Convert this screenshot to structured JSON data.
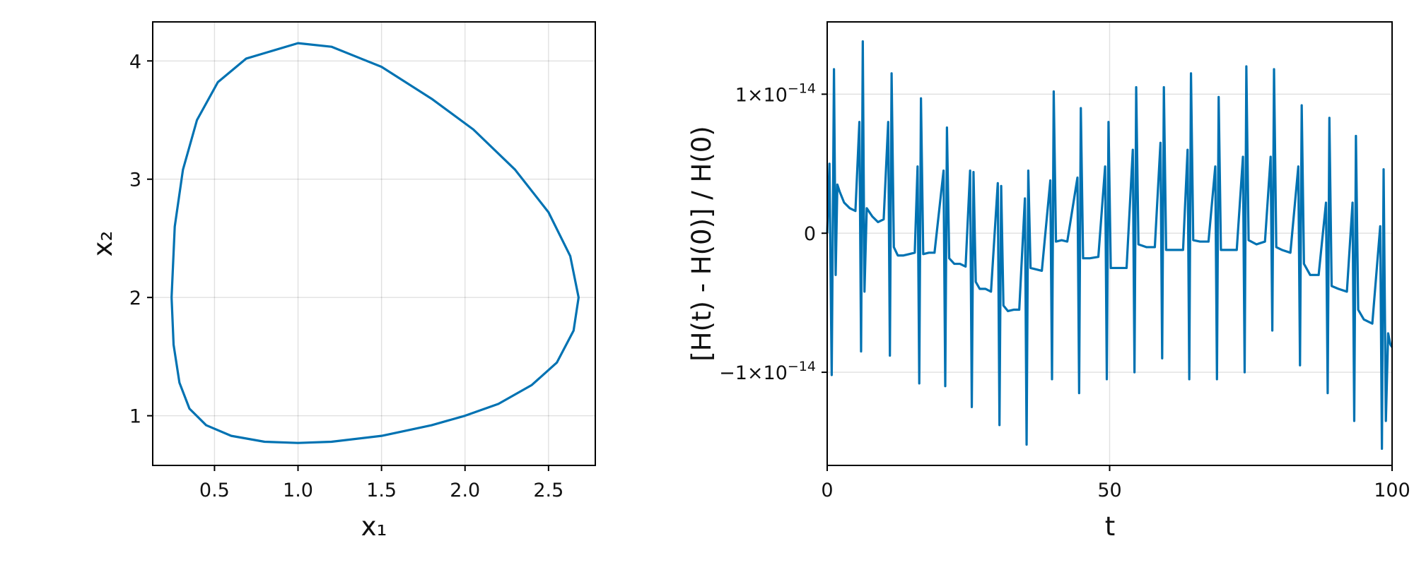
{
  "chart_data": [
    {
      "type": "line",
      "xlabel": "x₁",
      "ylabel": "x₂",
      "xlim": [
        0.13,
        2.78
      ],
      "ylim": [
        0.58,
        4.33
      ],
      "xticks": [
        {
          "value": 0.5,
          "label": "0.5"
        },
        {
          "value": 1.0,
          "label": "1.0"
        },
        {
          "value": 1.5,
          "label": "1.5"
        },
        {
          "value": 2.0,
          "label": "2.0"
        },
        {
          "value": 2.5,
          "label": "2.5"
        }
      ],
      "yticks": [
        {
          "value": 1,
          "label": "1"
        },
        {
          "value": 2,
          "label": "2"
        },
        {
          "value": 3,
          "label": "3"
        },
        {
          "value": 4,
          "label": "4"
        }
      ],
      "grid": true,
      "color": "#0072b2",
      "series": [
        {
          "x": [
            0.243,
            0.262,
            0.311,
            0.395,
            0.52,
            0.69,
            1.0,
            1.2,
            1.5,
            1.8,
            2.05,
            2.3,
            2.5,
            2.63,
            2.68,
            2.65,
            2.55,
            2.4,
            2.2,
            2.0,
            1.8,
            1.5,
            1.2,
            1.0,
            0.8,
            0.6,
            0.45,
            0.35,
            0.29,
            0.255,
            0.243
          ],
          "y": [
            2.0,
            2.6,
            3.08,
            3.5,
            3.82,
            4.02,
            4.15,
            4.12,
            3.95,
            3.68,
            3.42,
            3.08,
            2.72,
            2.35,
            2.0,
            1.72,
            1.45,
            1.26,
            1.1,
            1.0,
            0.92,
            0.83,
            0.78,
            0.77,
            0.78,
            0.83,
            0.92,
            1.06,
            1.28,
            1.6,
            2.0
          ]
        }
      ]
    },
    {
      "type": "line",
      "xlabel": "t",
      "ylabel": "[H(t) - H(0)] / H(0)",
      "xlim": [
        0,
        100
      ],
      "ylim": [
        -1.67e-14,
        1.52e-14
      ],
      "xticks": [
        {
          "value": 0,
          "label": "0"
        },
        {
          "value": 50,
          "label": "50"
        },
        {
          "value": 100,
          "label": "100"
        }
      ],
      "yticks": [
        {
          "value": 1e-14,
          "mantissa": "1×10",
          "exp": "−14"
        },
        {
          "value": 0,
          "mantissa": "0",
          "exp": ""
        },
        {
          "value": -1e-14,
          "mantissa": "−1×10",
          "exp": "−14"
        }
      ],
      "grid": true,
      "color": "#0072b2",
      "series": [
        {
          "x": [
            0,
            0.4,
            0.8,
            1.2,
            1.5,
            1.8,
            2.2,
            3,
            4,
            5,
            5.7,
            6.0,
            6.3,
            6.6,
            7,
            8,
            9,
            10,
            10.8,
            11.1,
            11.4,
            11.8,
            12.5,
            13.5,
            14.5,
            15.5,
            16.0,
            16.3,
            16.6,
            17,
            18,
            19,
            20.6,
            20.9,
            21.2,
            21.6,
            22.5,
            23.5,
            24.5,
            25.3,
            25.6,
            25.9,
            26.3,
            27,
            28,
            29,
            30.2,
            30.5,
            30.8,
            31.2,
            32,
            33,
            34,
            35.0,
            35.3,
            35.6,
            36.0,
            37,
            38,
            39.5,
            39.8,
            40.1,
            40.5,
            41.5,
            42.5,
            44.3,
            44.6,
            44.9,
            45.3,
            46.5,
            48,
            49.2,
            49.5,
            49.8,
            50.2,
            51.5,
            53,
            54.1,
            54.4,
            54.7,
            55.1,
            56.5,
            58,
            59.0,
            59.3,
            59.6,
            60.0,
            61.5,
            63,
            63.8,
            64.1,
            64.4,
            64.8,
            66,
            67.5,
            68.7,
            69.0,
            69.3,
            69.7,
            71,
            72.5,
            73.6,
            73.9,
            74.2,
            74.6,
            76,
            77.5,
            78.5,
            78.8,
            79.1,
            79.5,
            80.5,
            82,
            83.4,
            83.7,
            84.0,
            84.4,
            85.5,
            87,
            88.3,
            88.6,
            88.9,
            89.3,
            90.5,
            92,
            93.0,
            93.3,
            93.6,
            94.0,
            95,
            96.5,
            97.9,
            98.2,
            98.5,
            98.9,
            99.3,
            99.7,
            100
          ],
          "y": [
            0.0,
            5e-15,
            -1.02e-14,
            1.18e-14,
            -3e-15,
            3.5e-15,
            3e-15,
            2.2e-15,
            1.8e-15,
            1.6e-15,
            8e-15,
            -8.5e-15,
            1.38e-14,
            -4.2e-15,
            1.8e-15,
            1.2e-15,
            8e-16,
            1e-15,
            8e-15,
            -8.8e-15,
            1.15e-14,
            -1e-15,
            -1.6e-15,
            -1.6e-15,
            -1.5e-15,
            -1.4e-15,
            4.8e-15,
            -1.08e-14,
            9.7e-15,
            -1.5e-15,
            -1.4e-15,
            -1.4e-15,
            4.5e-15,
            -1.1e-14,
            7.6e-15,
            -1.8e-15,
            -2.2e-15,
            -2.2e-15,
            -2.4e-15,
            4.5e-15,
            -1.25e-14,
            4.4e-15,
            -3.5e-15,
            -4e-15,
            -4e-15,
            -4.2e-15,
            3.6e-15,
            -1.38e-14,
            3.4e-15,
            -5.2e-15,
            -5.6e-15,
            -5.5e-15,
            -5.5e-15,
            2.5e-15,
            -1.52e-14,
            4.5e-15,
            -2.5e-15,
            -2.6e-15,
            -2.7e-15,
            3.8e-15,
            -1.05e-14,
            1.02e-14,
            -6e-16,
            -5e-16,
            -6e-16,
            4e-15,
            -1.15e-14,
            9e-15,
            -1.8e-15,
            -1.8e-15,
            -1.7e-15,
            4.8e-15,
            -1.05e-14,
            8e-15,
            -2.5e-15,
            -2.5e-15,
            -2.5e-15,
            6e-15,
            -1e-14,
            1.05e-14,
            -8e-16,
            -1e-15,
            -1e-15,
            6.5e-15,
            -9e-15,
            1.05e-14,
            -1.2e-15,
            -1.2e-15,
            -1.2e-15,
            6e-15,
            -1.05e-14,
            1.15e-14,
            -5e-16,
            -6e-16,
            -6e-16,
            4.8e-15,
            -1.05e-14,
            9.8e-15,
            -1.2e-15,
            -1.2e-15,
            -1.2e-15,
            5.5e-15,
            -1e-14,
            1.2e-14,
            -5e-16,
            -8e-16,
            -6e-16,
            5.5e-15,
            -7e-15,
            1.18e-14,
            -1e-15,
            -1.2e-15,
            -1.4e-15,
            4.8e-15,
            -9.5e-15,
            9.2e-15,
            -2.2e-15,
            -3e-15,
            -3e-15,
            2.2e-15,
            -1.15e-14,
            8.3e-15,
            -3.8e-15,
            -4e-15,
            -4.2e-15,
            2.2e-15,
            -1.35e-14,
            7e-15,
            -5.5e-15,
            -6.2e-15,
            -6.5e-15,
            5e-16,
            -1.55e-14,
            4.6e-15,
            -1.35e-14,
            -7.2e-15,
            -8e-15,
            -8.2e-15
          ]
        }
      ]
    }
  ]
}
